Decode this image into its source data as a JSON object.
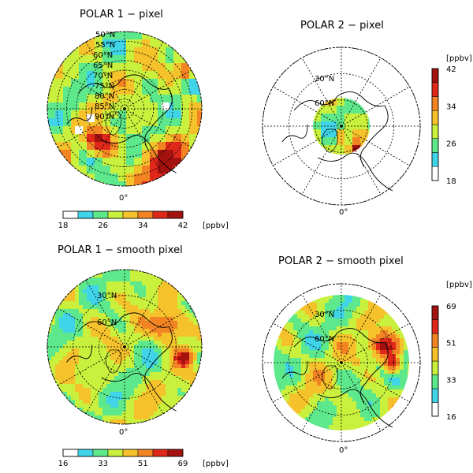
{
  "chart_data": [
    {
      "type": "heatmap",
      "title": "POLAR 1 − pixel",
      "projection": "north-polar-stereographic",
      "lat_labels": [
        "50°N",
        "55°N",
        "60°N",
        "65°N",
        "70°N",
        "75°N",
        "80°N",
        "85°N",
        "90°N"
      ],
      "lon_label": "0°",
      "colorbar": {
        "orientation": "horizontal",
        "ticks": [
          "18",
          "26",
          "34",
          "42"
        ],
        "unit": "[ppbv]",
        "range": [
          18,
          42
        ]
      },
      "colors": [
        "#ffffff",
        "#3fd4e8",
        "#5ee88c",
        "#c8f03c",
        "#f5c22b",
        "#f28424",
        "#e0281a",
        "#a4120f"
      ]
    },
    {
      "type": "heatmap",
      "title": "POLAR 2 − pixel",
      "projection": "north-polar-stereographic",
      "lat_labels": [
        "30°N",
        "60°N"
      ],
      "lon_label": "0°",
      "colorbar": {
        "orientation": "vertical",
        "ticks": [
          "18",
          "26",
          "34",
          "42"
        ],
        "unit": "[ppbv]",
        "range": [
          18,
          42
        ]
      }
    },
    {
      "type": "heatmap",
      "title": "POLAR 1 − smooth pixel",
      "projection": "north-polar-stereographic",
      "lat_labels": [
        "30°N",
        "60°N"
      ],
      "lon_label": "0°",
      "colorbar": {
        "orientation": "horizontal",
        "ticks": [
          "16",
          "33",
          "51",
          "69"
        ],
        "unit": "[ppbv]",
        "range": [
          16,
          69
        ]
      }
    },
    {
      "type": "heatmap",
      "title": "POLAR 2 − smooth pixel",
      "projection": "north-polar-stereographic",
      "lat_labels": [
        "30°N",
        "60°N"
      ],
      "lon_label": "0°",
      "colorbar": {
        "orientation": "vertical",
        "ticks": [
          "16",
          "33",
          "51",
          "69"
        ],
        "unit": "[ppbv]",
        "range": [
          16,
          69
        ]
      }
    }
  ]
}
